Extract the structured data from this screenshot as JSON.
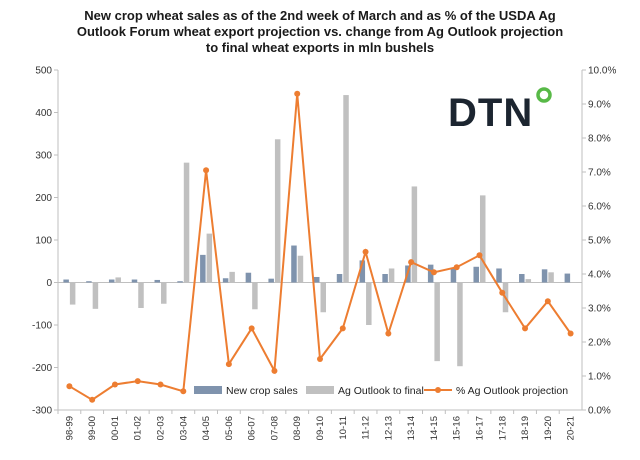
{
  "title": {
    "lines": [
      "New crop wheat sales as of the 2nd week of March and as  % of the USDA Ag",
      "Outlook Forum wheat export projection vs. change from Ag Outlook projection",
      "to final wheat exports in mln bushels"
    ]
  },
  "logo": {
    "text": "DTN",
    "accent": "#58b947",
    "accent2": "#2e86c1"
  },
  "colors": {
    "new_crop": "#7f93ad",
    "ag_outlook": "#c0c0c0",
    "pct_line": "#ed7d31",
    "axis": "#bfbfbf",
    "text": "#333333"
  },
  "chart_data": {
    "type": "bar",
    "categories": [
      "98-99",
      "99-00",
      "00-01",
      "01-02",
      "02-03",
      "03-04",
      "04-05",
      "05-06",
      "06-07",
      "07-08",
      "08-09",
      "09-10",
      "10-11",
      "11-12",
      "12-13",
      "13-14",
      "14-15",
      "15-16",
      "16-17",
      "17-18",
      "18-19",
      "19-20",
      "20-21"
    ],
    "left_ticks": [
      "500",
      "400",
      "300",
      "200",
      "100",
      "0",
      "-100",
      "-200",
      "-300"
    ],
    "right_ticks": [
      "10.0%",
      "9.0%",
      "8.0%",
      "7.0%",
      "6.0%",
      "5.0%",
      "4.0%",
      "3.0%",
      "2.0%",
      "1.0%",
      "0.0%"
    ],
    "ylim_left": [
      -300,
      500
    ],
    "ylim_right": [
      0,
      10
    ],
    "series": [
      {
        "name": "New crop sales",
        "type": "bar",
        "axis": "left",
        "values": [
          7,
          3,
          7,
          7,
          6,
          3,
          65,
          10,
          23,
          9,
          87,
          13,
          20,
          52,
          20,
          40,
          42,
          34,
          37,
          33,
          20,
          31,
          21
        ]
      },
      {
        "name": "Ag Outlook to final",
        "type": "bar",
        "axis": "left",
        "values": [
          -52,
          -62,
          12,
          -60,
          -50,
          282,
          115,
          25,
          -63,
          337,
          63,
          -70,
          441,
          -100,
          33,
          226,
          -185,
          -197,
          205,
          -70,
          8,
          24,
          0
        ]
      },
      {
        "name": "% Ag Outlook projection",
        "type": "line",
        "axis": "right",
        "values": [
          0.7,
          0.3,
          0.75,
          0.85,
          0.75,
          0.55,
          7.05,
          1.35,
          2.4,
          1.15,
          9.3,
          1.5,
          2.4,
          4.65,
          2.25,
          4.35,
          4.05,
          4.2,
          4.55,
          3.45,
          2.4,
          3.2,
          2.25
        ]
      }
    ],
    "grid": false,
    "legend_position": "bottom-right"
  }
}
